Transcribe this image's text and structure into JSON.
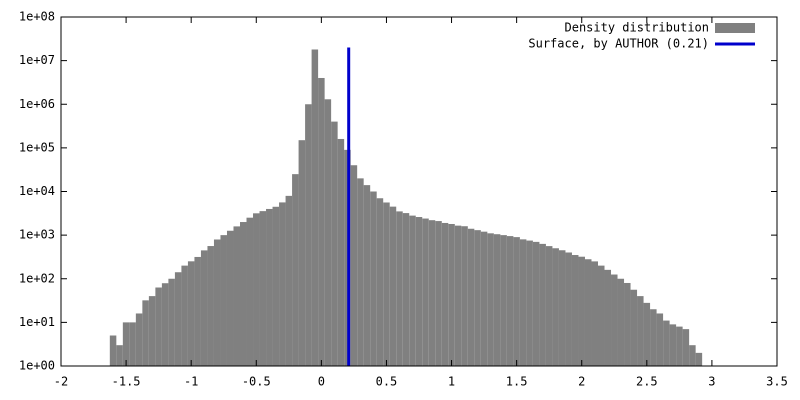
{
  "chart_data": {
    "type": "histogram",
    "log_y": true,
    "legend": "top-right",
    "bins": [
      -1.625,
      -1.575,
      -1.525,
      -1.475,
      -1.425,
      -1.375,
      -1.325,
      -1.275,
      -1.225,
      -1.175,
      -1.125,
      -1.075,
      -1.025,
      -0.975,
      -0.925,
      -0.875,
      -0.825,
      -0.775,
      -0.725,
      -0.675,
      -0.625,
      -0.575,
      -0.525,
      -0.475,
      -0.425,
      -0.375,
      -0.325,
      -0.275,
      -0.225,
      -0.175,
      -0.125,
      -0.075,
      -0.025,
      0.025,
      0.075,
      0.125,
      0.175,
      0.225,
      0.275,
      0.325,
      0.375,
      0.425,
      0.475,
      0.525,
      0.575,
      0.625,
      0.675,
      0.725,
      0.775,
      0.825,
      0.875,
      0.925,
      0.975,
      1.025,
      1.075,
      1.125,
      1.175,
      1.225,
      1.275,
      1.325,
      1.375,
      1.425,
      1.475,
      1.525,
      1.575,
      1.625,
      1.675,
      1.725,
      1.775,
      1.825,
      1.875,
      1.925,
      1.975,
      2.025,
      2.075,
      2.125,
      2.175,
      2.225,
      2.275,
      2.325,
      2.375,
      2.425,
      2.475,
      2.525,
      2.575,
      2.625,
      2.675,
      2.725,
      2.775,
      2.825,
      2.875,
      2.925
    ],
    "series": [
      {
        "name": "Density distribution",
        "color": "#808080",
        "values": [
          5,
          3,
          10,
          10,
          16,
          32,
          40,
          63,
          79,
          100,
          141,
          200,
          251,
          316,
          447,
          562,
          794,
          1000,
          1259,
          1585,
          1995,
          2512,
          3162,
          3548,
          3981,
          4467,
          5623,
          7943,
          25000,
          150000,
          1000000,
          18000000,
          4000000,
          1300000,
          400000,
          160000,
          90000,
          40000,
          20000,
          14000,
          10000,
          7000,
          5600,
          4500,
          3500,
          3200,
          2800,
          2600,
          2400,
          2200,
          2100,
          1900,
          1800,
          1650,
          1600,
          1400,
          1300,
          1200,
          1100,
          1050,
          1000,
          950,
          900,
          800,
          750,
          700,
          630,
          560,
          500,
          450,
          400,
          350,
          320,
          280,
          250,
          200,
          160,
          125,
          100,
          80,
          56,
          40,
          28,
          20,
          16,
          11,
          9,
          8,
          7,
          3,
          2
        ]
      }
    ],
    "vline": {
      "name": "Surface, by AUTHOR (0.21)",
      "color": "#0000cc",
      "x": 0.21,
      "y": [
        1,
        20000000
      ]
    },
    "xlim": [
      -2,
      3.5
    ],
    "xticks": [
      -2,
      -1.5,
      -1,
      -0.5,
      0,
      0.5,
      1,
      1.5,
      2,
      2.5,
      3,
      3.5
    ],
    "ylim": [
      1,
      100000000
    ],
    "yticks": [
      {
        "value": 1,
        "label": "1e+00"
      },
      {
        "value": 10,
        "label": "1e+01"
      },
      {
        "value": 100,
        "label": "1e+02"
      },
      {
        "value": 1000,
        "label": "1e+03"
      },
      {
        "value": 10000,
        "label": "1e+04"
      },
      {
        "value": 100000,
        "label": "1e+05"
      },
      {
        "value": 1000000,
        "label": "1e+06"
      },
      {
        "value": 10000000,
        "label": "1e+07"
      },
      {
        "value": 100000000,
        "label": "1e+08"
      }
    ]
  }
}
